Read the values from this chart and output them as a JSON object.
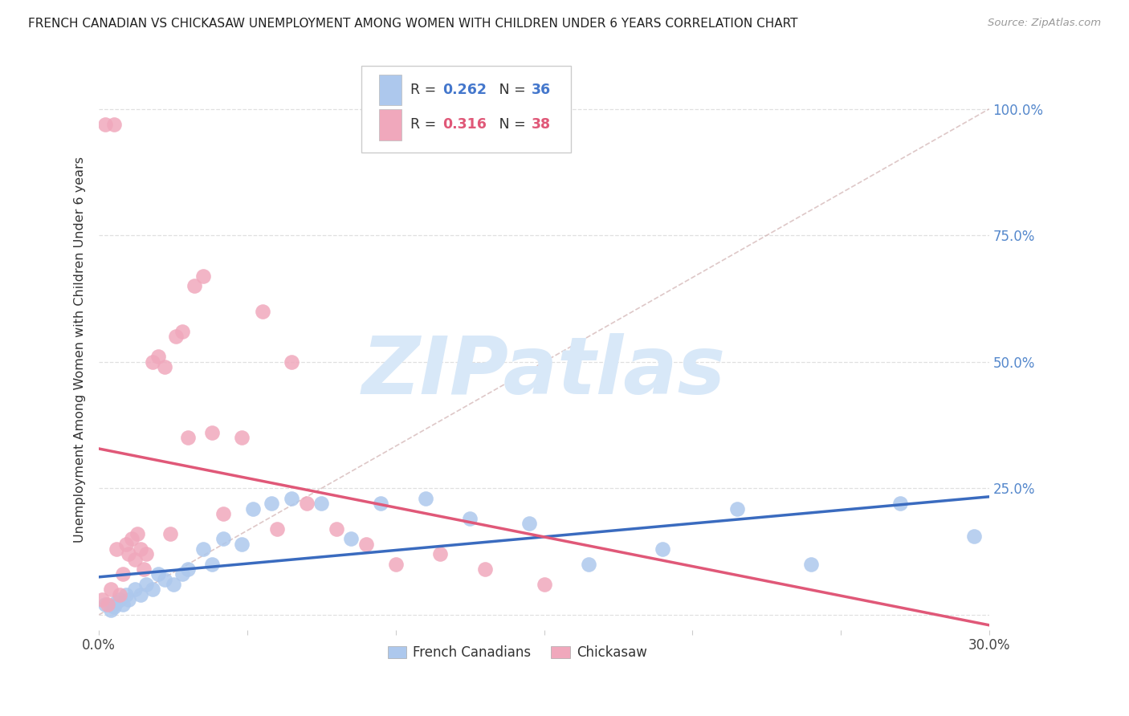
{
  "title": "FRENCH CANADIAN VS CHICKASAW UNEMPLOYMENT AMONG WOMEN WITH CHILDREN UNDER 6 YEARS CORRELATION CHART",
  "source": "Source: ZipAtlas.com",
  "ylabel": "Unemployment Among Women with Children Under 6 years",
  "xmin": 0.0,
  "xmax": 0.3,
  "ymin": -0.03,
  "ymax": 1.08,
  "yticks": [
    0.0,
    0.25,
    0.5,
    0.75,
    1.0
  ],
  "ytick_labels_right": [
    "",
    "25.0%",
    "50.0%",
    "75.0%",
    "100.0%"
  ],
  "legend_entries": [
    {
      "label": "French Canadians",
      "R": "0.262",
      "N": "36",
      "color": "#adc8ed",
      "line_color": "#3a6bbf"
    },
    {
      "label": "Chickasaw",
      "R": "0.316",
      "N": "38",
      "color": "#f0a8bc",
      "line_color": "#e05878"
    }
  ],
  "french_canadians_x": [
    0.002,
    0.004,
    0.005,
    0.006,
    0.007,
    0.008,
    0.009,
    0.01,
    0.012,
    0.014,
    0.016,
    0.018,
    0.02,
    0.022,
    0.025,
    0.028,
    0.03,
    0.035,
    0.038,
    0.042,
    0.048,
    0.052,
    0.058,
    0.065,
    0.075,
    0.085,
    0.095,
    0.11,
    0.125,
    0.145,
    0.165,
    0.19,
    0.215,
    0.24,
    0.27,
    0.295
  ],
  "french_canadians_y": [
    0.02,
    0.01,
    0.015,
    0.025,
    0.03,
    0.02,
    0.04,
    0.03,
    0.05,
    0.04,
    0.06,
    0.05,
    0.08,
    0.07,
    0.06,
    0.08,
    0.09,
    0.13,
    0.1,
    0.15,
    0.14,
    0.21,
    0.22,
    0.23,
    0.22,
    0.15,
    0.22,
    0.23,
    0.19,
    0.18,
    0.1,
    0.13,
    0.21,
    0.1,
    0.22,
    0.155
  ],
  "chickasaw_x": [
    0.001,
    0.002,
    0.003,
    0.004,
    0.005,
    0.006,
    0.007,
    0.008,
    0.009,
    0.01,
    0.011,
    0.012,
    0.013,
    0.014,
    0.015,
    0.016,
    0.018,
    0.02,
    0.022,
    0.024,
    0.026,
    0.028,
    0.03,
    0.032,
    0.035,
    0.038,
    0.042,
    0.048,
    0.055,
    0.06,
    0.065,
    0.07,
    0.08,
    0.09,
    0.1,
    0.115,
    0.13,
    0.15
  ],
  "chickasaw_y": [
    0.03,
    0.97,
    0.02,
    0.05,
    0.97,
    0.13,
    0.04,
    0.08,
    0.14,
    0.12,
    0.15,
    0.11,
    0.16,
    0.13,
    0.09,
    0.12,
    0.5,
    0.51,
    0.49,
    0.16,
    0.55,
    0.56,
    0.35,
    0.65,
    0.67,
    0.36,
    0.2,
    0.35,
    0.6,
    0.17,
    0.5,
    0.22,
    0.17,
    0.14,
    0.1,
    0.12,
    0.09,
    0.06
  ],
  "diagonal_color": "#d0b0b0",
  "diagonal_style": "--",
  "watermark": "ZIPatlas",
  "watermark_color": "#d8e8f8",
  "bg_color": "#ffffff",
  "grid_color": "#e0e0e0"
}
